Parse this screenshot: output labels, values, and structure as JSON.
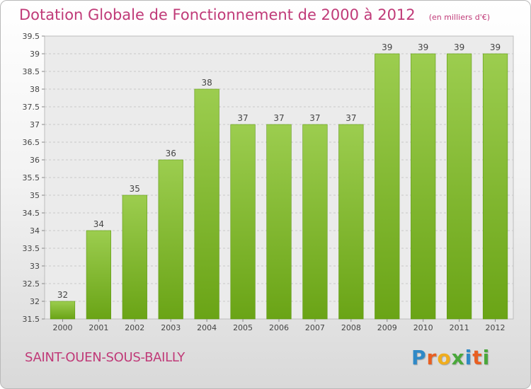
{
  "chart_data": {
    "type": "bar",
    "title": "Dotation Globale de Fonctionnement de 2000 à 2012",
    "unit": "(en milliers d'€)",
    "categories": [
      "2000",
      "2001",
      "2002",
      "2003",
      "2004",
      "2005",
      "2006",
      "2007",
      "2008",
      "2009",
      "2010",
      "2011",
      "2012"
    ],
    "values": [
      32,
      34,
      35,
      36,
      38,
      37,
      37,
      37,
      37,
      39,
      39,
      39,
      39
    ],
    "data_labels": [
      "32",
      "34",
      "35",
      "36",
      "38",
      "37",
      "37",
      "37",
      "37",
      "39",
      "39",
      "39",
      "39"
    ],
    "ylim": [
      31.5,
      39.5
    ],
    "yticks": [
      31.5,
      32,
      32.5,
      33,
      33.5,
      34,
      34.5,
      35,
      35.5,
      36,
      36.5,
      37,
      37.5,
      38,
      38.5,
      39,
      39.5
    ],
    "ytick_labels": [
      "31.5",
      "32",
      "32.5",
      "33",
      "33.5",
      "34",
      "34.5",
      "35",
      "35.5",
      "36",
      "36.5",
      "37",
      "37.5",
      "38",
      "38.5",
      "39",
      "39.5"
    ],
    "grid": true,
    "bar_color": "#7fc135"
  },
  "footer": {
    "commune": "SAINT-OUEN-SOUS-BAILLY"
  },
  "logo": {
    "letters": [
      "P",
      "r",
      "o",
      "x",
      "i",
      "t",
      "i"
    ],
    "colors": [
      "#2f89c7",
      "#e85f22",
      "#f0ad1d",
      "#4aa83b",
      "#2f89c7",
      "#e85f22",
      "#4aa83b"
    ]
  }
}
